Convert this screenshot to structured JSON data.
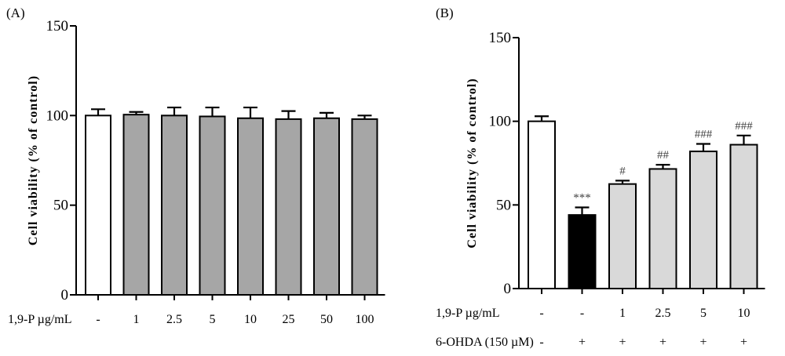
{
  "chart_data": [
    {
      "panel_label": "(A)",
      "type": "bar",
      "ylabel": "Cell viability (% of control)",
      "ylim": [
        0,
        150
      ],
      "yticks": [
        0,
        50,
        100,
        150
      ],
      "row_labels": [
        "1,9-P µg/mL"
      ],
      "categories": [
        "-",
        "1",
        "2.5",
        "5",
        "10",
        "25",
        "50",
        "100"
      ],
      "values": [
        100,
        100.5,
        100,
        99.5,
        98.5,
        98,
        98.5,
        98
      ],
      "errors": [
        3.5,
        1.5,
        4.5,
        5,
        6,
        4.5,
        3,
        2
      ],
      "colors": [
        "#ffffff",
        "#a6a6a6",
        "#a6a6a6",
        "#a6a6a6",
        "#a6a6a6",
        "#a6a6a6",
        "#a6a6a6",
        "#a6a6a6"
      ]
    },
    {
      "panel_label": "(B)",
      "type": "bar",
      "ylabel": "Cell viability (% of control)",
      "ylim": [
        0,
        150
      ],
      "yticks": [
        0,
        50,
        100,
        150
      ],
      "row_labels": [
        "1,9-P µg/mL",
        "6-OHDA (150 µM)"
      ],
      "categories": [
        "-",
        "-",
        "1",
        "2.5",
        "5",
        "10"
      ],
      "second_row": [
        "-",
        "+",
        "+",
        "+",
        "+",
        "+"
      ],
      "values": [
        100,
        44,
        62.5,
        71.5,
        82,
        86
      ],
      "errors": [
        3,
        4.5,
        2,
        2.5,
        4.5,
        5.5
      ],
      "annotations": [
        "",
        "***",
        "#",
        "##",
        "###",
        "###"
      ],
      "colors": [
        "#ffffff",
        "#000000",
        "#d9d9d9",
        "#d9d9d9",
        "#d9d9d9",
        "#d9d9d9"
      ]
    }
  ]
}
